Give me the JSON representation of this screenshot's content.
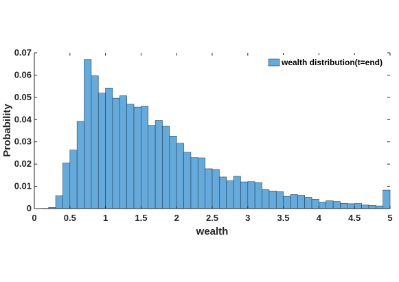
{
  "chart_data": {
    "type": "bar",
    "xlabel": "wealth",
    "ylabel": "Probability",
    "xlim": [
      0,
      5
    ],
    "ylim": [
      0,
      0.07
    ],
    "xticks": [
      0,
      0.5,
      1,
      1.5,
      2,
      2.5,
      3,
      3.5,
      4,
      4.5,
      5
    ],
    "xtick_labels": [
      "0",
      "0.5",
      "1",
      "1.5",
      "2",
      "2.5",
      "3",
      "3.5",
      "4",
      "4.5",
      "5"
    ],
    "yticks": [
      0,
      0.01,
      0.02,
      0.03,
      0.04,
      0.05,
      0.06,
      0.07
    ],
    "ytick_labels": [
      "0",
      "0.01",
      "0.02",
      "0.03",
      "0.04",
      "0.05",
      "0.06",
      "0.07"
    ],
    "legend": {
      "entries": [
        "wealth distribution(t=end)"
      ],
      "position": "top-right"
    },
    "grid": false,
    "bar_color": "#66aadb",
    "edge_color": "#1f3f5a",
    "bin_width": 0.1,
    "bin_edges": [
      0,
      0.1,
      0.2,
      0.3,
      0.4,
      0.5,
      0.6,
      0.7,
      0.8,
      0.9,
      1.0,
      1.1,
      1.2,
      1.3,
      1.4,
      1.5,
      1.6,
      1.7,
      1.8,
      1.9,
      2.0,
      2.1,
      2.2,
      2.3,
      2.4,
      2.5,
      2.6,
      2.7,
      2.8,
      2.9,
      3.0,
      3.1,
      3.2,
      3.3,
      3.4,
      3.5,
      3.6,
      3.7,
      3.8,
      3.9,
      4.0,
      4.1,
      4.2,
      4.3,
      4.4,
      4.5,
      4.6,
      4.7,
      4.8,
      4.9,
      5.0
    ],
    "values": [
      0.0,
      0.0001,
      0.0005,
      0.0058,
      0.0205,
      0.0263,
      0.0392,
      0.067,
      0.0597,
      0.0519,
      0.0542,
      0.0496,
      0.0507,
      0.0469,
      0.0456,
      0.046,
      0.0374,
      0.0396,
      0.037,
      0.0326,
      0.0294,
      0.0253,
      0.0229,
      0.0228,
      0.0179,
      0.0176,
      0.0142,
      0.0125,
      0.0145,
      0.012,
      0.0121,
      0.0117,
      0.0085,
      0.0079,
      0.0076,
      0.0055,
      0.0063,
      0.006,
      0.0051,
      0.0042,
      0.0029,
      0.0035,
      0.0032,
      0.0024,
      0.0022,
      0.0023,
      0.0016,
      0.0014,
      0.0012,
      0.0083
    ]
  }
}
